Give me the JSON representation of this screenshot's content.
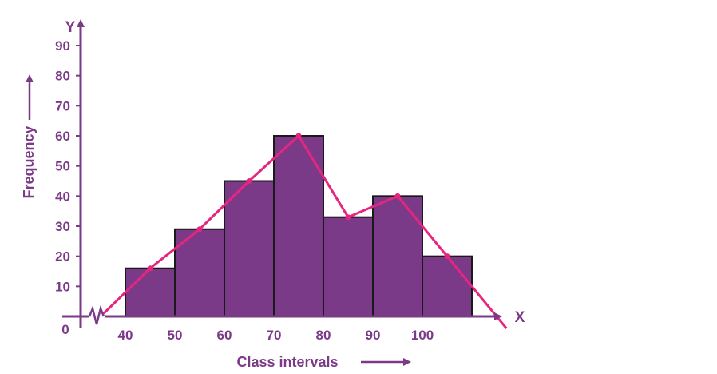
{
  "chart_data": {
    "type": "bar",
    "subtype": "histogram-with-frequency-polygon",
    "xlabel": "Class intervals",
    "ylabel": "Frequency",
    "x_axis_letter": "X",
    "y_axis_letter": "Y",
    "origin_label": "0",
    "x_ticks": [
      "40",
      "50",
      "60",
      "70",
      "80",
      "90",
      "100"
    ],
    "y_ticks": [
      "10",
      "20",
      "30",
      "40",
      "50",
      "60",
      "70",
      "80",
      "90"
    ],
    "ylim": [
      0,
      90
    ],
    "class_intervals": [
      [
        40,
        50
      ],
      [
        50,
        60
      ],
      [
        60,
        70
      ],
      [
        70,
        80
      ],
      [
        80,
        90
      ],
      [
        90,
        100
      ],
      [
        100,
        110
      ]
    ],
    "values": [
      16,
      29,
      45,
      60,
      33,
      40,
      20
    ],
    "polygon": {
      "x": [
        35,
        45,
        55,
        65,
        75,
        85,
        95,
        105,
        115
      ],
      "y": [
        0,
        16,
        29,
        45,
        60,
        33,
        40,
        20,
        0
      ]
    },
    "axis_break": true,
    "colors": {
      "bars": "#7b3a88",
      "bar_edge": "#1a1a1a",
      "polygon": "#e6257e",
      "axis": "#7b3a88"
    }
  }
}
